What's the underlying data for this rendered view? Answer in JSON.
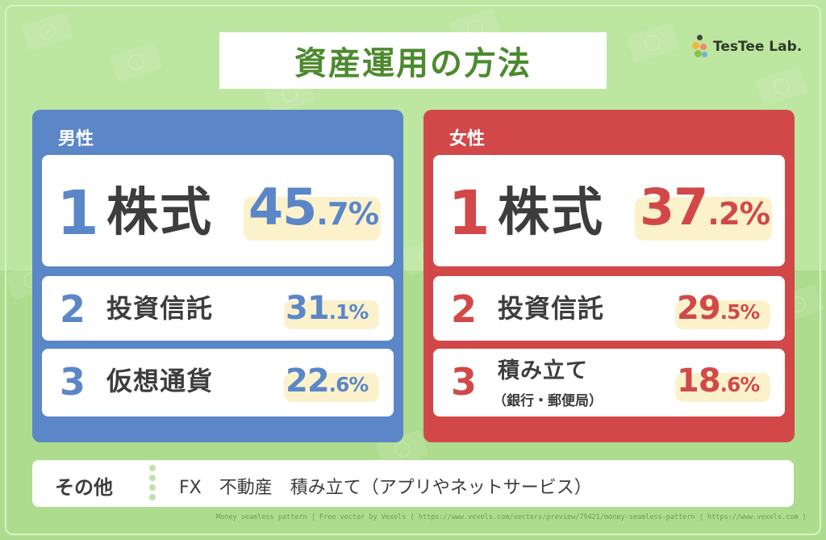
{
  "title": "資産運用の方法",
  "logo": {
    "text": "TesTee Lab."
  },
  "colors": {
    "male": "#5b86c8",
    "female": "#d24848",
    "title": "#4c8a2e",
    "background": "#bde6a1",
    "highlight": "#fbf2cc"
  },
  "male": {
    "heading": "男性",
    "ranks": [
      {
        "rank": "1",
        "name": "株式",
        "pct_int": "45",
        "pct_dec": ".7",
        "unit": "%"
      },
      {
        "rank": "2",
        "name": "投資信託",
        "pct_int": "31",
        "pct_dec": ".1",
        "unit": "%"
      },
      {
        "rank": "3",
        "name": "仮想通貨",
        "pct_int": "22",
        "pct_dec": ".6",
        "unit": "%"
      }
    ]
  },
  "female": {
    "heading": "女性",
    "ranks": [
      {
        "rank": "1",
        "name": "株式",
        "pct_int": "37",
        "pct_dec": ".2",
        "unit": "%"
      },
      {
        "rank": "2",
        "name": "投資信託",
        "pct_int": "29",
        "pct_dec": ".5",
        "unit": "%"
      },
      {
        "rank": "3",
        "name": "積み立て",
        "sub": "（銀行・郵便局）",
        "pct_int": "18",
        "pct_dec": ".6",
        "unit": "%"
      }
    ]
  },
  "other": {
    "label": "その他",
    "text": "FX　不動産　積み立て（アプリやネットサービス）"
  },
  "credit": "Money seamless pattern | Free vector by Vexels ( https://www.vexels.com/vectors/preview/79421/money-seamless-pattern | https://www.vexels.com )"
}
